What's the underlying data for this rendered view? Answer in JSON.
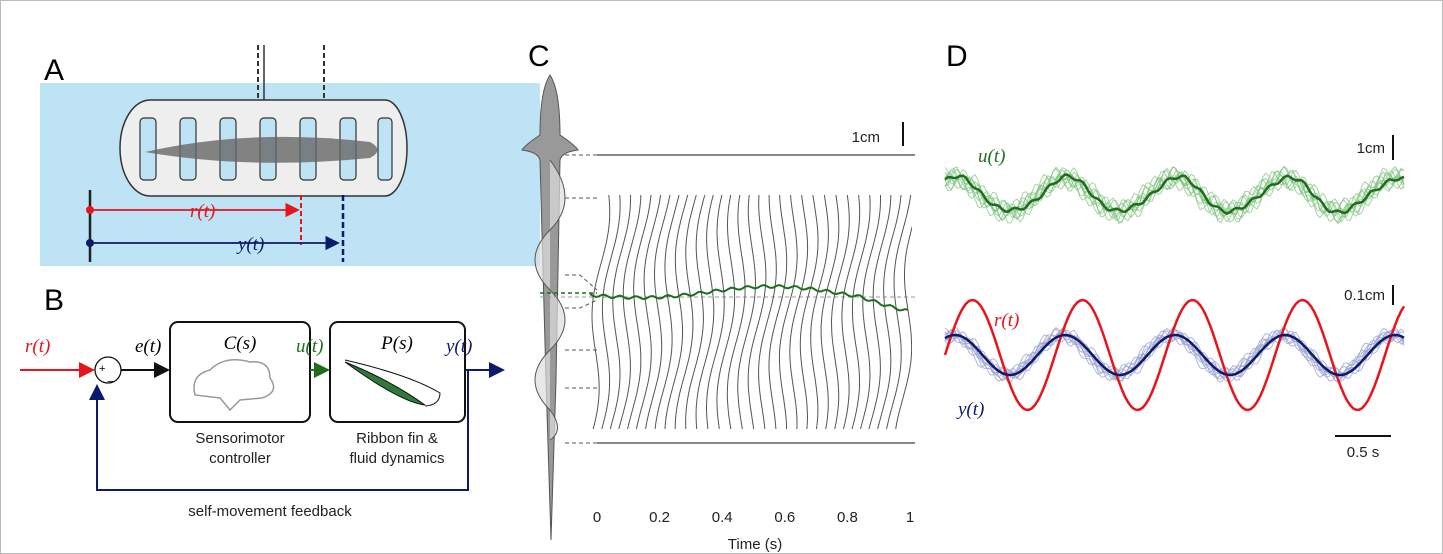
{
  "panels": {
    "a": {
      "label": "A",
      "reference": "r(t)",
      "output": "y(t)"
    },
    "b": {
      "label": "B",
      "input": "r(t)",
      "plus": "+",
      "minus": "−",
      "error": "e(t)",
      "controller": {
        "name": "C(s)",
        "caption_lines": [
          "Sensorimotor",
          "controller"
        ]
      },
      "control": "u(t)",
      "plant": {
        "name": "P(s)",
        "caption_lines": [
          "Ribbon fin &",
          "fluid dynamics"
        ]
      },
      "output": "y(t)",
      "feedback": "self-movement feedback"
    },
    "c": {
      "label": "C",
      "scale": "1cm",
      "x_label": "Time (s)",
      "xlim": [
        0,
        1
      ],
      "xticks": [
        0,
        0.2,
        0.4,
        0.6,
        0.8,
        1
      ]
    },
    "d": {
      "label": "D",
      "control_scale": "1cm",
      "control": "u(t)",
      "output_scale": "0.1cm",
      "reference": "r(t)",
      "output": "y(t)",
      "time_scale": "0.5 s"
    }
  }
}
